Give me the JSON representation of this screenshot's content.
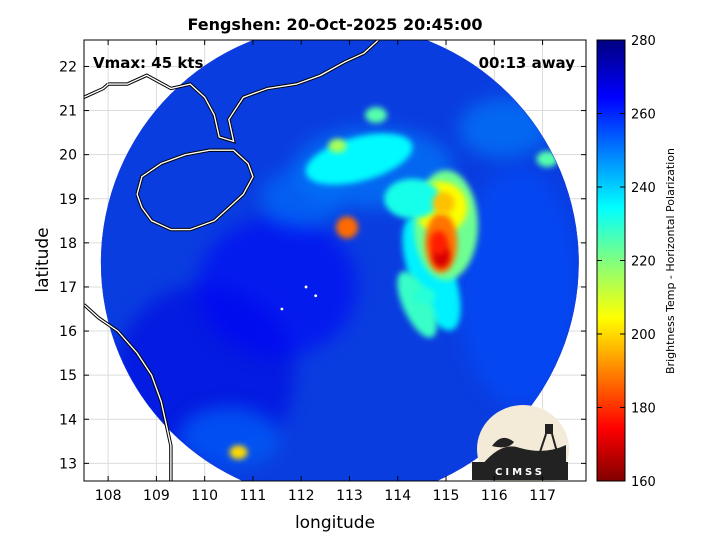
{
  "chart_data": {
    "type": "heatmap",
    "title": "Fengshen: 20-Oct-2025 20:45:00",
    "xlabel": "longitude",
    "ylabel": "latitude",
    "xlim": [
      107.5,
      117.9
    ],
    "ylim": [
      12.6,
      22.6
    ],
    "xticks": [
      108,
      109,
      110,
      111,
      112,
      113,
      114,
      115,
      116,
      117
    ],
    "yticks": [
      13,
      14,
      15,
      16,
      17,
      18,
      19,
      20,
      21,
      22
    ],
    "grid": true,
    "colorbar": {
      "label": "Brightness Temp - Horizontal Polarization",
      "min": 160,
      "max": 280,
      "ticks": [
        160,
        180,
        200,
        220,
        240,
        260,
        280
      ],
      "colormap": "jet",
      "placement": "right"
    },
    "annotations": {
      "vmax": "Vmax: 45 kts",
      "time_offset": "00:13 away"
    },
    "swath": {
      "center": [
        112.8,
        17.55
      ],
      "radius_deg": 4.95
    },
    "features": [
      {
        "name": "storm center",
        "lon": 114.9,
        "lat": 17.7,
        "tb": 170
      },
      {
        "name": "eyewall",
        "lon": 114.85,
        "lat": 18.0,
        "tb": 178
      },
      {
        "name": "north convection",
        "lon": 114.95,
        "lat": 18.9,
        "tb": 197
      },
      {
        "name": "rainband",
        "lon": 114.55,
        "lat": 16.8,
        "tb": 230
      },
      {
        "name": "isolated cell",
        "lon": 112.95,
        "lat": 18.35,
        "tb": 187
      },
      {
        "name": "north cell",
        "lon": 112.75,
        "lat": 20.2,
        "tb": 215
      },
      {
        "name": "northeast cell",
        "lon": 113.55,
        "lat": 20.9,
        "tb": 225
      },
      {
        "name": "east cell",
        "lon": 117.1,
        "lat": 19.9,
        "tb": 225
      },
      {
        "name": "south cell",
        "lon": 110.7,
        "lat": 13.25,
        "tb": 200
      }
    ],
    "land_tb": 262,
    "ocean_tb": 262,
    "logo": "CIMSS"
  }
}
